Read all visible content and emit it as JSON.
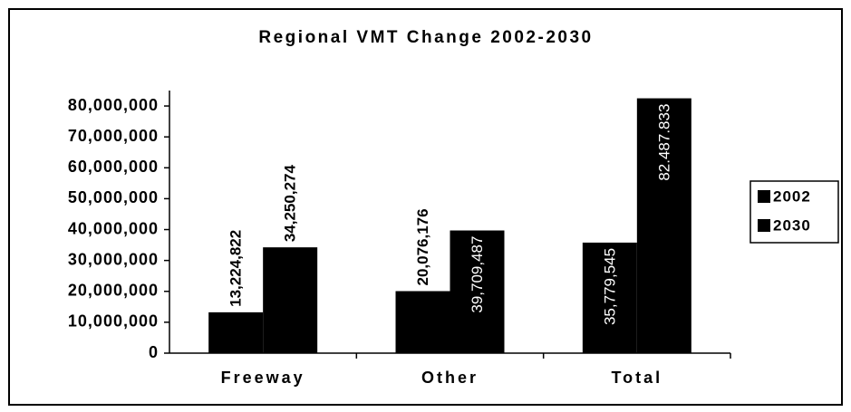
{
  "chart_data": {
    "type": "bar",
    "title": "Regional VMT Change 2002-2030",
    "categories": [
      "Freeway",
      "Other",
      "Total"
    ],
    "series": [
      {
        "name": "2002",
        "color": "#000000",
        "values": [
          13224822,
          20076176,
          35779545
        ],
        "value_labels": [
          "13,224,822",
          "20,076,176",
          "35,779,545"
        ]
      },
      {
        "name": "2030",
        "color": "#000000",
        "values": [
          34250274,
          39709487,
          82487833
        ],
        "value_labels": [
          "34,250,274",
          "39,709,487",
          "82.487.833"
        ]
      }
    ],
    "ylim": [
      0,
      85000000
    ],
    "yticks": [
      0,
      {
        "value": 10000000,
        "label": "10,000,000"
      },
      {
        "value": 20000000,
        "label": "20,000,000"
      },
      {
        "value": 30000000,
        "label": "30,000,000"
      },
      {
        "value": 40000000,
        "label": "40,000,000"
      },
      {
        "value": 50000000,
        "label": "50,000,000"
      },
      {
        "value": 60000000,
        "label": "60,000,000"
      },
      {
        "value": 70000000,
        "label": "70,000,000"
      },
      {
        "value": 80000000,
        "label": "80,000,000"
      }
    ],
    "legend": "right"
  }
}
